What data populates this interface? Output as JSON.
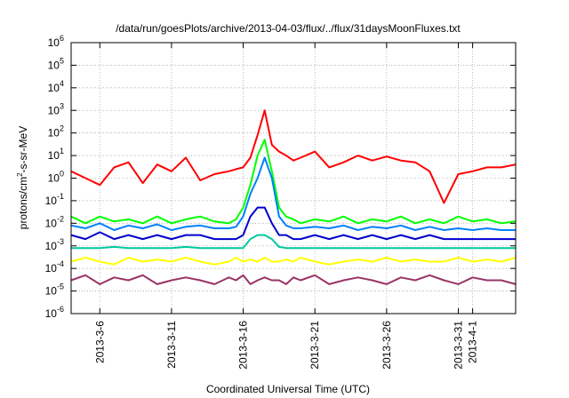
{
  "chart_data": {
    "type": "line",
    "title": "/data/run/goesPlots/archive/2013-04-03/flux/../flux/31daysMoonFluxes.txt",
    "xlabel": "Coordinated Universal Time (UTC)",
    "ylabel": "protons/cm²-s-sr-MeV",
    "ylabel_parts": {
      "base": "protons/cm",
      "sup": "2",
      "rest": "-s-sr-MeV"
    },
    "y_scale": "log",
    "ylim": [
      1e-06,
      1000000.0
    ],
    "y_ticks": [
      {
        "exp": -6,
        "base": "10",
        "sup": "-6"
      },
      {
        "exp": -5,
        "base": "10",
        "sup": "-5"
      },
      {
        "exp": -4,
        "base": "10",
        "sup": "-4"
      },
      {
        "exp": -3,
        "base": "10",
        "sup": "-3"
      },
      {
        "exp": -2,
        "base": "10",
        "sup": "-2"
      },
      {
        "exp": -1,
        "base": "10",
        "sup": "-1"
      },
      {
        "exp": 0,
        "base": "10",
        "sup": "0"
      },
      {
        "exp": 1,
        "base": "10",
        "sup": "1"
      },
      {
        "exp": 2,
        "base": "10",
        "sup": "2"
      },
      {
        "exp": 3,
        "base": "10",
        "sup": "3"
      },
      {
        "exp": 4,
        "base": "10",
        "sup": "4"
      },
      {
        "exp": 5,
        "base": "10",
        "sup": "5"
      },
      {
        "exp": 6,
        "base": "10",
        "sup": "6"
      }
    ],
    "xlim": [
      "2013-03-04",
      "2013-04-04"
    ],
    "x_ticks": [
      {
        "label": "2013-3-6",
        "date": "2013-03-06"
      },
      {
        "label": "2013-3-11",
        "date": "2013-03-11"
      },
      {
        "label": "2013-3-16",
        "date": "2013-03-16"
      },
      {
        "label": "2013-3-21",
        "date": "2013-03-21"
      },
      {
        "label": "2013-3-26",
        "date": "2013-03-26"
      },
      {
        "label": "2013-3-31",
        "date": "2013-03-31"
      },
      {
        "label": "2013-4-1",
        "date": "2013-04-01"
      }
    ],
    "grid": true,
    "x": [
      "2013-03-04",
      "2013-03-05",
      "2013-03-06",
      "2013-03-07",
      "2013-03-08",
      "2013-03-09",
      "2013-03-10",
      "2013-03-11",
      "2013-03-12",
      "2013-03-13",
      "2013-03-14",
      "2013-03-15",
      "2013-03-15T12:00",
      "2013-03-16",
      "2013-03-16T12:00",
      "2013-03-17",
      "2013-03-17T12:00",
      "2013-03-18",
      "2013-03-18T12:00",
      "2013-03-19",
      "2013-03-19T12:00",
      "2013-03-20",
      "2013-03-21",
      "2013-03-22",
      "2013-03-23",
      "2013-03-24",
      "2013-03-25",
      "2013-03-26",
      "2013-03-27",
      "2013-03-28",
      "2013-03-29",
      "2013-03-30",
      "2013-03-31",
      "2013-04-01",
      "2013-04-02",
      "2013-04-03",
      "2013-04-04"
    ],
    "series": [
      {
        "color": "#ff0000",
        "values": [
          2,
          1,
          0.5,
          3,
          5,
          0.6,
          4,
          2,
          8,
          0.8,
          1.5,
          2,
          2.5,
          3,
          8,
          80,
          1000,
          30,
          15,
          10,
          6,
          8,
          15,
          3,
          5,
          10,
          6,
          9,
          6,
          5,
          2,
          0.08,
          1.5,
          2,
          3,
          3,
          4
        ]
      },
      {
        "color": "#00ff00",
        "values": [
          0.02,
          0.01,
          0.02,
          0.012,
          0.015,
          0.01,
          0.02,
          0.01,
          0.015,
          0.02,
          0.012,
          0.01,
          0.015,
          0.05,
          0.5,
          10,
          50,
          2,
          0.05,
          0.02,
          0.015,
          0.01,
          0.015,
          0.012,
          0.02,
          0.01,
          0.015,
          0.012,
          0.02,
          0.01,
          0.015,
          0.01,
          0.02,
          0.012,
          0.015,
          0.01,
          0.012
        ]
      },
      {
        "color": "#0080ff",
        "values": [
          0.008,
          0.006,
          0.01,
          0.005,
          0.008,
          0.006,
          0.009,
          0.005,
          0.007,
          0.008,
          0.006,
          0.006,
          0.007,
          0.02,
          0.2,
          1,
          8,
          1,
          0.02,
          0.008,
          0.006,
          0.006,
          0.007,
          0.006,
          0.008,
          0.005,
          0.007,
          0.006,
          0.008,
          0.005,
          0.007,
          0.005,
          0.006,
          0.005,
          0.006,
          0.005,
          0.005
        ]
      },
      {
        "color": "#0000cc",
        "values": [
          0.003,
          0.002,
          0.004,
          0.002,
          0.003,
          0.002,
          0.003,
          0.002,
          0.003,
          0.003,
          0.002,
          0.002,
          0.002,
          0.003,
          0.02,
          0.05,
          0.05,
          0.01,
          0.003,
          0.003,
          0.002,
          0.002,
          0.003,
          0.002,
          0.003,
          0.002,
          0.003,
          0.002,
          0.003,
          0.002,
          0.003,
          0.002,
          0.002,
          0.002,
          0.002,
          0.002,
          0.002
        ]
      },
      {
        "color": "#00c8a0",
        "values": [
          0.0008,
          0.0008,
          0.0008,
          0.0009,
          0.0008,
          0.0008,
          0.0008,
          0.0008,
          0.0009,
          0.0008,
          0.0008,
          0.0008,
          0.0008,
          0.0008,
          0.002,
          0.003,
          0.003,
          0.002,
          0.0009,
          0.0008,
          0.0008,
          0.0008,
          0.0008,
          0.0008,
          0.0008,
          0.0008,
          0.0008,
          0.0008,
          0.0008,
          0.0008,
          0.0008,
          0.0008,
          0.0008,
          0.0008,
          0.0008,
          0.0008,
          0.0008
        ]
      },
      {
        "color": "#ffff00",
        "values": [
          0.0002,
          0.0003,
          0.0002,
          0.00015,
          0.0003,
          0.0002,
          0.00025,
          0.0002,
          0.0003,
          0.0002,
          0.00015,
          0.0002,
          0.0003,
          0.0002,
          0.00025,
          0.0002,
          0.0003,
          0.0002,
          0.0002,
          0.00025,
          0.0002,
          0.0003,
          0.0002,
          0.00015,
          0.0002,
          0.00025,
          0.0002,
          0.0003,
          0.0002,
          0.00025,
          0.0002,
          0.0002,
          0.0003,
          0.0002,
          0.00025,
          0.0002,
          0.0003
        ]
      },
      {
        "color": "#993366",
        "values": [
          3e-05,
          5e-05,
          2e-05,
          4e-05,
          3e-05,
          5e-05,
          2e-05,
          3e-05,
          4e-05,
          3e-05,
          2e-05,
          4e-05,
          3e-05,
          5e-05,
          2e-05,
          3e-05,
          4e-05,
          3e-05,
          3e-05,
          2e-05,
          4e-05,
          3e-05,
          5e-05,
          2e-05,
          3e-05,
          4e-05,
          3e-05,
          2e-05,
          4e-05,
          3e-05,
          5e-05,
          3e-05,
          2e-05,
          4e-05,
          3e-05,
          3e-05,
          2e-05
        ]
      }
    ]
  }
}
